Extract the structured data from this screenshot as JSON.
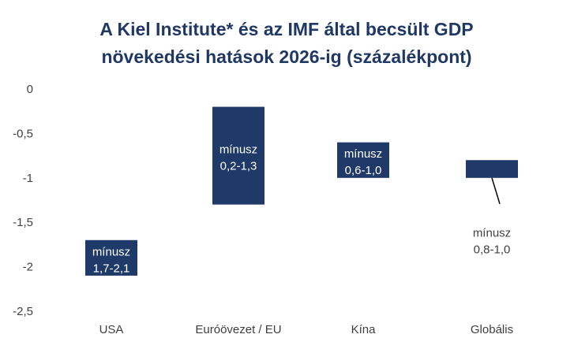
{
  "chart_data": {
    "type": "bar",
    "title_lines": [
      "A Kiel Institute* és az IMF által becsült GDP",
      "növekedési hatások 2026-ig (százalékpont)"
    ],
    "y_ticks": [
      "0",
      "-0,5",
      "-1",
      "-1,5",
      "-2",
      "-2,5"
    ],
    "ylim": [
      -2.5,
      0
    ],
    "grid": false,
    "categories": [
      "USA",
      "Euróövezet / EU",
      "Kína",
      "Globális"
    ],
    "ranges": [
      {
        "low": -2.1,
        "high": -1.7
      },
      {
        "low": -1.3,
        "high": -0.2
      },
      {
        "low": -1.0,
        "high": -0.6
      },
      {
        "low": -1.0,
        "high": -0.8
      }
    ],
    "data_labels": [
      [
        "mínusz",
        "1,7-2,1"
      ],
      [
        "mínusz",
        "0,2-1,3"
      ],
      [
        "mínusz",
        "0,6-1,0"
      ],
      [
        "mínusz",
        "0,8-1,0"
      ]
    ],
    "bar_color": "#1f3a68"
  }
}
